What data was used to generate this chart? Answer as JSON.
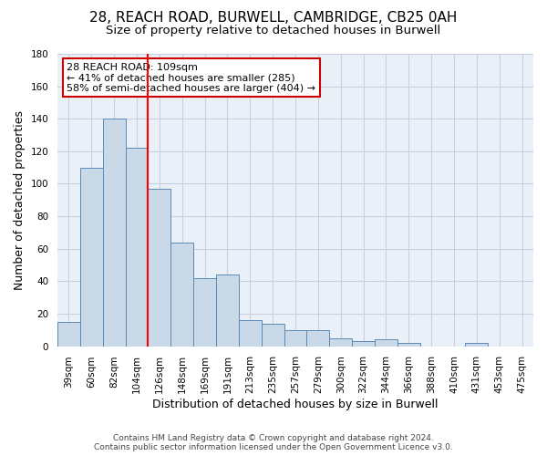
{
  "title1": "28, REACH ROAD, BURWELL, CAMBRIDGE, CB25 0AH",
  "title2": "Size of property relative to detached houses in Burwell",
  "xlabel": "Distribution of detached houses by size in Burwell",
  "ylabel": "Number of detached properties",
  "categories": [
    "39sqm",
    "60sqm",
    "82sqm",
    "104sqm",
    "126sqm",
    "148sqm",
    "169sqm",
    "191sqm",
    "213sqm",
    "235sqm",
    "257sqm",
    "279sqm",
    "300sqm",
    "322sqm",
    "344sqm",
    "366sqm",
    "388sqm",
    "410sqm",
    "431sqm",
    "453sqm",
    "475sqm"
  ],
  "values": [
    15,
    110,
    140,
    122,
    97,
    64,
    42,
    44,
    16,
    14,
    10,
    10,
    5,
    3,
    4,
    2,
    0,
    0,
    2,
    0,
    0
  ],
  "bar_color": "#c9d9e8",
  "bar_edge_color": "#5a8ab5",
  "redline_index": 3,
  "ylim": [
    0,
    180
  ],
  "yticks": [
    0,
    20,
    40,
    60,
    80,
    100,
    120,
    140,
    160,
    180
  ],
  "annotation_lines": [
    "28 REACH ROAD: 109sqm",
    "← 41% of detached houses are smaller (285)",
    "58% of semi-detached houses are larger (404) →"
  ],
  "annotation_box_color": "#ffffff",
  "annotation_box_edge": "#cc0000",
  "footer1": "Contains HM Land Registry data © Crown copyright and database right 2024.",
  "footer2": "Contains public sector information licensed under the Open Government Licence v3.0.",
  "background_color": "#ffffff",
  "grid_color": "#c8d0e0",
  "title1_fontsize": 11,
  "title2_fontsize": 9.5,
  "tick_fontsize": 7.5,
  "ylabel_fontsize": 9,
  "xlabel_fontsize": 9,
  "annotation_fontsize": 8,
  "footer_fontsize": 6.5
}
